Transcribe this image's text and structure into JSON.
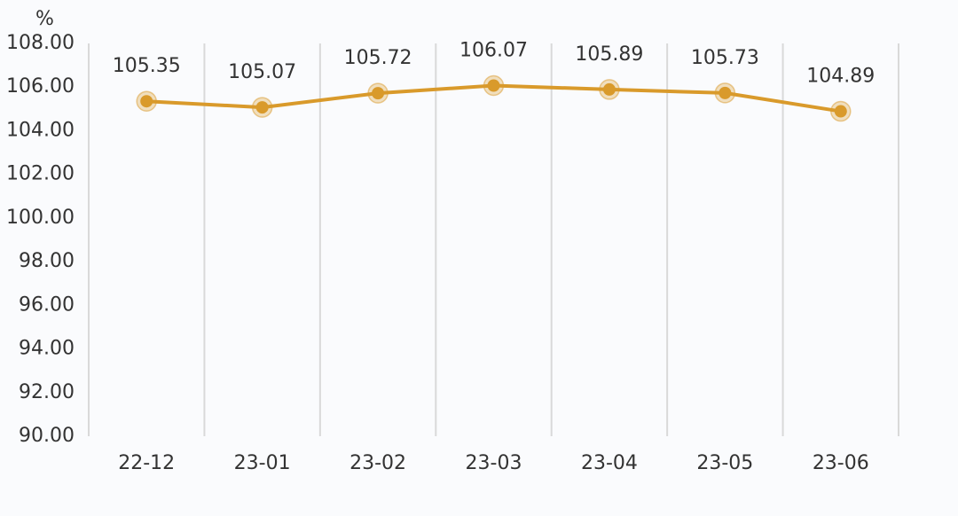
{
  "chart_data": {
    "type": "line",
    "y_label": "%",
    "categories": [
      "22-12",
      "23-01",
      "23-02",
      "23-03",
      "23-04",
      "23-05",
      "23-06"
    ],
    "values": [
      105.35,
      105.07,
      105.72,
      106.07,
      105.89,
      105.73,
      104.89
    ],
    "color": "#d99a2b",
    "ylim": [
      90,
      108
    ],
    "yticks": [
      {
        "value": 90,
        "label": "90.00"
      },
      {
        "value": 92,
        "label": "92.00"
      },
      {
        "value": 94,
        "label": "94.00"
      },
      {
        "value": 96,
        "label": "96.00"
      },
      {
        "value": 98,
        "label": "98.00"
      },
      {
        "value": 100,
        "label": "100.00"
      },
      {
        "value": 102,
        "label": "102.00"
      },
      {
        "value": 104,
        "label": "104.00"
      },
      {
        "value": 106,
        "label": "106.00"
      },
      {
        "value": 108,
        "label": "108.00"
      }
    ],
    "grid": false,
    "category_separators": true
  }
}
